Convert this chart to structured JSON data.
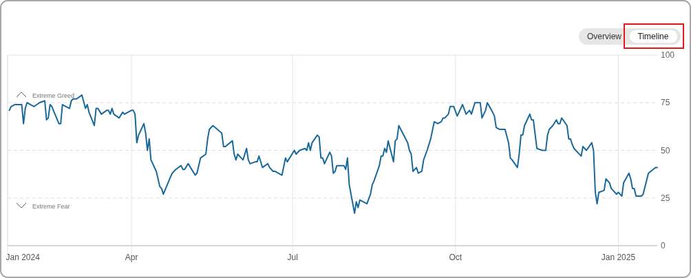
{
  "chart_data": {
    "type": "line",
    "color": "#17699b",
    "grid": true,
    "xlim": [
      "2024-01-22",
      "2025-01-23"
    ],
    "xticks": [
      {
        "value": "2024-01-22",
        "label": "Jan 2024"
      },
      {
        "value": "2024-04-01",
        "label": "Apr"
      },
      {
        "value": "2024-07-01",
        "label": "Jul"
      },
      {
        "value": "2024-10-01",
        "label": "Oct"
      },
      {
        "value": "2025-01-01",
        "label": "Jan 2025"
      }
    ],
    "ylim": [
      0,
      100
    ],
    "yticks": [
      0,
      25,
      50,
      75,
      100
    ],
    "annotations": [
      "Extreme Greed",
      "Extreme Fear",
      "Overview",
      "Timeline"
    ],
    "x": [
      "2024-01-23",
      "2024-01-24",
      "2024-01-26",
      "2024-01-30",
      "2024-01-31",
      "2024-02-01",
      "2024-02-02",
      "2024-02-04",
      "2024-02-06",
      "2024-02-09",
      "2024-02-12",
      "2024-02-13",
      "2024-02-14",
      "2024-02-15",
      "2024-02-16",
      "2024-02-20",
      "2024-02-21",
      "2024-02-22",
      "2024-02-26",
      "2024-02-27",
      "2024-02-28",
      "2024-03-01",
      "2024-03-04",
      "2024-03-06",
      "2024-03-07",
      "2024-03-08",
      "2024-03-11",
      "2024-03-12",
      "2024-03-13",
      "2024-03-15",
      "2024-03-18",
      "2024-03-19",
      "2024-03-20",
      "2024-03-21",
      "2024-03-22",
      "2024-03-25",
      "2024-03-27",
      "2024-03-28",
      "2024-04-01",
      "2024-04-02",
      "2024-04-03",
      "2024-04-04",
      "2024-04-05",
      "2024-04-08",
      "2024-04-09",
      "2024-04-10",
      "2024-04-11",
      "2024-04-12",
      "2024-04-15",
      "2024-04-17",
      "2024-04-18",
      "2024-04-19",
      "2024-04-23",
      "2024-04-24",
      "2024-04-26",
      "2024-04-29",
      "2024-04-30",
      "2024-05-01",
      "2024-05-03",
      "2024-05-07",
      "2024-05-08",
      "2024-05-10",
      "2024-05-13",
      "2024-05-14",
      "2024-05-15",
      "2024-05-17",
      "2024-05-22",
      "2024-05-23",
      "2024-05-24",
      "2024-05-28",
      "2024-05-29",
      "2024-05-30",
      "2024-05-31",
      "2024-06-03",
      "2024-06-05",
      "2024-06-06",
      "2024-06-07",
      "2024-06-10",
      "2024-06-11",
      "2024-06-12",
      "2024-06-14",
      "2024-06-17",
      "2024-06-18",
      "2024-06-20",
      "2024-06-21",
      "2024-06-25",
      "2024-06-27",
      "2024-06-28",
      "2024-07-02",
      "2024-07-03",
      "2024-07-05",
      "2024-07-08",
      "2024-07-09",
      "2024-07-10",
      "2024-07-11",
      "2024-07-12",
      "2024-07-15",
      "2024-07-16",
      "2024-07-17",
      "2024-07-18",
      "2024-07-19",
      "2024-07-22",
      "2024-07-23",
      "2024-07-24",
      "2024-07-25",
      "2024-07-26",
      "2024-07-29",
      "2024-07-30",
      "2024-07-31",
      "2024-08-01",
      "2024-08-02",
      "2024-08-03",
      "2024-08-05",
      "2024-08-06",
      "2024-08-07",
      "2024-08-08",
      "2024-08-12",
      "2024-08-14",
      "2024-08-15",
      "2024-08-16",
      "2024-08-19",
      "2024-08-20",
      "2024-08-21",
      "2024-08-22",
      "2024-08-23",
      "2024-08-24",
      "2024-08-27",
      "2024-08-28",
      "2024-08-29",
      "2024-08-30",
      "2024-09-04",
      "2024-09-05",
      "2024-09-06",
      "2024-09-07",
      "2024-09-09",
      "2024-09-10",
      "2024-09-12",
      "2024-09-13",
      "2024-09-15",
      "2024-09-17",
      "2024-09-19",
      "2024-09-21",
      "2024-09-23",
      "2024-09-24",
      "2024-09-25",
      "2024-09-27",
      "2024-09-28",
      "2024-09-30",
      "2024-10-02",
      "2024-10-03",
      "2024-10-05",
      "2024-10-07",
      "2024-10-09",
      "2024-10-10",
      "2024-10-12",
      "2024-10-15",
      "2024-10-16",
      "2024-10-17",
      "2024-10-18",
      "2024-10-19",
      "2024-10-22",
      "2024-10-23",
      "2024-10-24",
      "2024-10-26",
      "2024-10-29",
      "2024-10-31",
      "2024-11-01",
      "2024-11-02",
      "2024-11-05",
      "2024-11-06",
      "2024-11-07",
      "2024-11-08",
      "2024-11-09",
      "2024-11-12",
      "2024-11-13",
      "2024-11-14",
      "2024-11-16",
      "2024-11-19",
      "2024-11-21",
      "2024-11-22",
      "2024-11-23",
      "2024-11-25",
      "2024-11-27",
      "2024-11-28",
      "2024-11-29",
      "2024-11-30",
      "2024-12-03",
      "2024-12-04",
      "2024-12-05",
      "2024-12-06",
      "2024-12-07",
      "2024-12-11",
      "2024-12-12",
      "2024-12-14",
      "2024-12-17",
      "2024-12-18",
      "2024-12-19",
      "2024-12-20",
      "2024-12-21",
      "2024-12-24",
      "2024-12-25",
      "2024-12-27",
      "2024-12-28",
      "2024-12-31",
      "2025-01-01",
      "2025-01-02",
      "2025-01-03",
      "2025-01-04",
      "2025-01-07",
      "2025-01-08",
      "2025-01-09",
      "2025-01-10",
      "2025-01-11",
      "2025-01-14",
      "2025-01-15",
      "2025-01-18",
      "2025-01-22",
      "2025-01-23"
    ],
    "values": [
      71,
      73,
      74,
      74,
      64,
      72,
      75,
      74,
      73,
      75,
      76,
      66,
      67,
      74,
      73,
      64,
      64,
      74,
      72,
      76,
      77,
      77,
      79,
      72,
      74,
      70,
      63,
      72,
      72,
      69,
      71,
      71,
      69,
      72,
      69,
      67,
      70,
      69,
      71,
      71,
      69,
      54,
      58,
      64,
      59,
      50,
      56,
      45,
      39,
      31,
      30,
      27,
      36,
      38,
      40,
      42,
      40,
      40,
      43,
      37,
      38,
      46,
      48,
      56,
      61,
      63,
      59,
      52,
      52,
      55,
      48,
      45,
      48,
      45,
      51,
      45,
      43,
      44,
      44,
      47,
      41,
      43,
      41,
      39,
      39,
      37,
      46,
      44,
      50,
      48,
      50,
      51,
      50,
      54,
      50,
      54,
      58,
      57,
      46,
      46,
      43,
      49,
      47,
      38,
      39,
      42,
      42,
      42,
      40,
      46,
      32,
      27,
      17,
      23,
      20,
      24,
      22,
      27,
      32,
      34,
      42,
      47,
      47,
      51,
      49,
      55,
      44,
      55,
      56,
      63,
      54,
      50,
      48,
      39,
      41,
      38,
      39,
      45,
      50,
      56,
      65,
      64,
      65,
      67,
      67,
      69,
      73,
      73,
      68,
      70,
      74,
      69,
      71,
      69,
      75,
      75,
      67,
      69,
      71,
      75,
      70,
      68,
      62,
      61,
      61,
      54,
      46,
      45,
      41,
      48,
      58,
      58,
      63,
      69,
      66,
      66,
      51,
      50,
      50,
      58,
      61,
      63,
      66,
      64,
      64,
      67,
      63,
      56,
      56,
      53,
      51,
      47,
      52,
      50,
      54,
      50,
      28,
      22,
      28,
      29,
      35,
      33,
      30,
      27,
      28,
      27,
      26,
      33,
      38,
      35,
      30,
      30,
      26,
      26,
      27,
      38,
      41,
      41
    ]
  }
}
